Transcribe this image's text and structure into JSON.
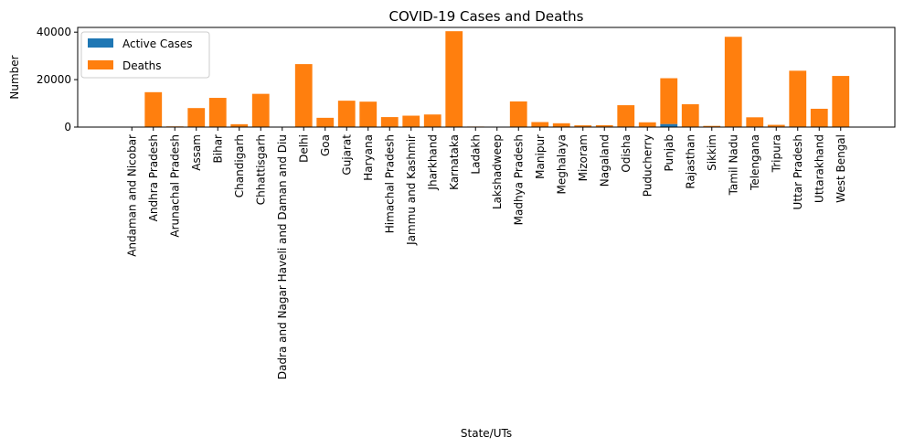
{
  "chart_data": {
    "type": "bar",
    "stacked": true,
    "title": "COVID-19 Cases and Deaths",
    "xlabel": "State/UTs",
    "ylabel": "Number",
    "ylim": [
      0,
      42000
    ],
    "yticks": [
      0,
      20000,
      40000
    ],
    "grid": false,
    "legend": "top-left",
    "categories": [
      "Andaman and Nicobar",
      "Andhra Pradesh",
      "Arunachal Pradesh",
      "Assam",
      "Bihar",
      "Chandigarh",
      "Chhattisgarh",
      "Dadra and Nagar Haveli and Daman and Diu",
      "Delhi",
      "Goa",
      "Gujarat",
      "Haryana",
      "Himachal Pradesh",
      "Jammu and Kashmir",
      "Jharkhand",
      "Karnataka",
      "Ladakh",
      "Lakshadweep",
      "Madhya Pradesh",
      "Manipur",
      "Meghalaya",
      "Mizoram",
      "Nagaland",
      "Odisha",
      "Puducherry",
      "Punjab",
      "Rajasthan",
      "Sikkim",
      "Tamil Nadu",
      "Telengana",
      "Tripura",
      "Uttar Pradesh",
      "Uttarakhand",
      "West Bengal"
    ],
    "series": [
      {
        "name": "Active Cases",
        "color": "#1f77b4",
        "values": [
          0,
          10,
          0,
          20,
          10,
          10,
          10,
          0,
          50,
          10,
          20,
          20,
          10,
          10,
          10,
          100,
          0,
          0,
          20,
          10,
          10,
          5,
          5,
          20,
          10,
          1300,
          20,
          5,
          50,
          20,
          5,
          50,
          20,
          50
        ]
      },
      {
        "name": "Deaths",
        "color": "#ff7f0e",
        "values": [
          130,
          14700,
          300,
          8000,
          12300,
          1200,
          14000,
          4,
          26500,
          3900,
          11100,
          10700,
          4200,
          4800,
          5300,
          40300,
          230,
          52,
          10800,
          2100,
          1600,
          730,
          780,
          9200,
          2000,
          19300,
          9600,
          500,
          38000,
          4100,
          940,
          23700,
          7700,
          21500
        ]
      }
    ]
  }
}
